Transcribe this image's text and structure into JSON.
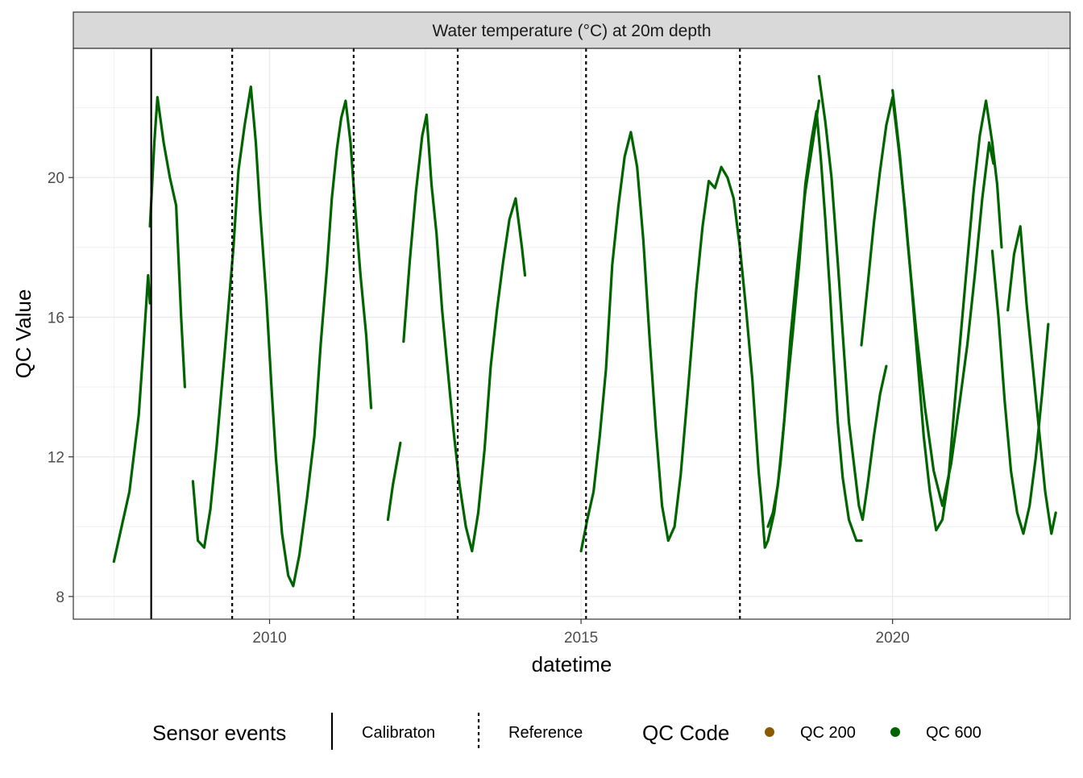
{
  "chart_data": {
    "type": "line",
    "panel_title": "Water temperature (°C) at 20m depth",
    "xlabel": "datetime",
    "ylabel": "QC Value",
    "x_ticks": [
      2010,
      2015,
      2020
    ],
    "y_ticks": [
      8,
      12,
      16,
      20
    ],
    "xlim": [
      2006.85,
      2022.85
    ],
    "ylim": [
      7.35,
      23.7
    ],
    "grid": true,
    "series": [
      {
        "name": "QC 600",
        "color": "#006400",
        "segments": [
          [
            [
              2007.5,
              9.0
            ],
            [
              2007.6,
              9.8
            ],
            [
              2007.75,
              11.0
            ],
            [
              2007.9,
              13.2
            ],
            [
              2007.97,
              15.0
            ],
            [
              2008.05,
              17.2
            ],
            [
              2008.08,
              16.4
            ]
          ],
          [
            [
              2008.08,
              18.6
            ],
            [
              2008.15,
              21.0
            ],
            [
              2008.2,
              22.3
            ],
            [
              2008.3,
              21.0
            ],
            [
              2008.4,
              20.0
            ],
            [
              2008.5,
              19.2
            ],
            [
              2008.58,
              16.0
            ],
            [
              2008.64,
              14.0
            ]
          ],
          [
            [
              2008.77,
              11.3
            ],
            [
              2008.85,
              9.6
            ],
            [
              2008.95,
              9.4
            ],
            [
              2009.05,
              10.5
            ],
            [
              2009.15,
              12.3
            ],
            [
              2009.28,
              15.0
            ],
            [
              2009.42,
              18.0
            ],
            [
              2009.5,
              20.2
            ],
            [
              2009.6,
              21.5
            ],
            [
              2009.7,
              22.6
            ],
            [
              2009.78,
              21.0
            ],
            [
              2009.85,
              19.0
            ],
            [
              2009.95,
              16.5
            ],
            [
              2010.03,
              14.0
            ],
            [
              2010.1,
              12.0
            ],
            [
              2010.2,
              9.8
            ],
            [
              2010.3,
              8.6
            ],
            [
              2010.38,
              8.3
            ],
            [
              2010.48,
              9.2
            ],
            [
              2010.6,
              10.8
            ],
            [
              2010.72,
              12.6
            ],
            [
              2010.82,
              15.2
            ],
            [
              2010.92,
              17.4
            ],
            [
              2011.0,
              19.4
            ],
            [
              2011.08,
              20.8
            ],
            [
              2011.15,
              21.7
            ],
            [
              2011.22,
              22.2
            ],
            [
              2011.3,
              21.0
            ],
            [
              2011.38,
              19.0
            ],
            [
              2011.46,
              17.2
            ],
            [
              2011.55,
              15.5
            ],
            [
              2011.63,
              13.4
            ]
          ],
          [
            [
              2011.9,
              10.2
            ],
            [
              2011.98,
              11.2
            ],
            [
              2012.1,
              12.4
            ]
          ],
          [
            [
              2012.15,
              15.3
            ],
            [
              2012.25,
              17.6
            ],
            [
              2012.35,
              19.6
            ],
            [
              2012.45,
              21.2
            ],
            [
              2012.52,
              21.8
            ],
            [
              2012.6,
              19.8
            ],
            [
              2012.68,
              18.4
            ],
            [
              2012.77,
              16.2
            ],
            [
              2012.86,
              14.5
            ],
            [
              2012.95,
              12.8
            ],
            [
              2013.05,
              11.2
            ],
            [
              2013.15,
              10.0
            ],
            [
              2013.25,
              9.3
            ],
            [
              2013.35,
              10.4
            ],
            [
              2013.45,
              12.2
            ],
            [
              2013.55,
              14.6
            ],
            [
              2013.65,
              16.2
            ],
            [
              2013.75,
              17.6
            ],
            [
              2013.85,
              18.8
            ],
            [
              2013.95,
              19.4
            ],
            [
              2014.05,
              18.0
            ],
            [
              2014.1,
              17.2
            ]
          ],
          [
            [
              2015.0,
              9.3
            ],
            [
              2015.1,
              10.2
            ],
            [
              2015.2,
              11.0
            ],
            [
              2015.3,
              12.6
            ],
            [
              2015.4,
              14.5
            ],
            [
              2015.5,
              17.5
            ],
            [
              2015.6,
              19.2
            ],
            [
              2015.7,
              20.6
            ],
            [
              2015.8,
              21.3
            ],
            [
              2015.9,
              20.3
            ],
            [
              2016.0,
              18.2
            ],
            [
              2016.1,
              15.4
            ],
            [
              2016.2,
              12.8
            ],
            [
              2016.3,
              10.6
            ],
            [
              2016.4,
              9.6
            ],
            [
              2016.5,
              10.0
            ],
            [
              2016.6,
              11.5
            ],
            [
              2016.72,
              14.0
            ],
            [
              2016.85,
              16.8
            ],
            [
              2016.95,
              18.6
            ],
            [
              2017.05,
              19.9
            ],
            [
              2017.15,
              19.7
            ],
            [
              2017.25,
              20.3
            ],
            [
              2017.35,
              20.0
            ],
            [
              2017.45,
              19.4
            ],
            [
              2017.55,
              18.0
            ],
            [
              2017.65,
              16.2
            ],
            [
              2017.75,
              14.2
            ],
            [
              2017.85,
              11.6
            ],
            [
              2017.9,
              10.6
            ],
            [
              2017.95,
              9.4
            ],
            [
              2018.0,
              9.6
            ],
            [
              2018.1,
              10.4
            ],
            [
              2018.2,
              11.8
            ],
            [
              2018.3,
              13.8
            ],
            [
              2018.4,
              15.6
            ],
            [
              2018.5,
              17.5
            ],
            [
              2018.6,
              19.8
            ],
            [
              2018.7,
              21.1
            ],
            [
              2018.78,
              21.9
            ],
            [
              2018.85,
              20.5
            ],
            [
              2018.92,
              18.8
            ],
            [
              2019.0,
              16.6
            ],
            [
              2019.05,
              15.0
            ],
            [
              2019.12,
              13.0
            ],
            [
              2019.2,
              11.4
            ],
            [
              2019.3,
              10.2
            ],
            [
              2019.42,
              9.6
            ],
            [
              2019.5,
              9.6
            ]
          ],
          [
            [
              2019.5,
              15.2
            ],
            [
              2019.6,
              16.9
            ],
            [
              2019.7,
              18.7
            ],
            [
              2019.8,
              20.2
            ],
            [
              2019.9,
              21.5
            ],
            [
              2020.0,
              22.3
            ],
            [
              2020.1,
              20.8
            ],
            [
              2020.2,
              19.1
            ],
            [
              2020.3,
              17.0
            ],
            [
              2020.4,
              14.8
            ],
            [
              2020.5,
              12.6
            ],
            [
              2020.6,
              11.0
            ],
            [
              2020.7,
              9.9
            ],
            [
              2020.8,
              10.2
            ],
            [
              2020.9,
              11.4
            ],
            [
              2021.0,
              13.6
            ],
            [
              2021.1,
              15.6
            ],
            [
              2021.2,
              17.6
            ],
            [
              2021.3,
              19.6
            ],
            [
              2021.4,
              21.2
            ],
            [
              2021.5,
              22.2
            ],
            [
              2021.6,
              21.0
            ],
            [
              2021.68,
              19.8
            ],
            [
              2021.75,
              18.0
            ]
          ],
          [
            [
              2021.85,
              16.2
            ],
            [
              2021.95,
              17.8
            ],
            [
              2022.05,
              18.6
            ],
            [
              2022.15,
              16.4
            ],
            [
              2022.25,
              14.6
            ],
            [
              2022.35,
              12.8
            ],
            [
              2022.45,
              11.0
            ],
            [
              2022.55,
              9.8
            ],
            [
              2022.62,
              10.4
            ]
          ],
          [
            [
              2018.0,
              10.0
            ],
            [
              2018.08,
              10.4
            ],
            [
              2018.16,
              11.2
            ],
            [
              2018.26,
              13.0
            ],
            [
              2018.36,
              15.4
            ],
            [
              2018.48,
              17.6
            ],
            [
              2018.6,
              19.6
            ],
            [
              2018.72,
              21.0
            ],
            [
              2018.82,
              22.2
            ]
          ],
          [
            [
              2018.82,
              22.9
            ],
            [
              2018.92,
              21.6
            ],
            [
              2019.02,
              20.0
            ],
            [
              2019.12,
              17.6
            ],
            [
              2019.22,
              15.0
            ],
            [
              2019.3,
              13.0
            ],
            [
              2019.38,
              11.8
            ],
            [
              2019.46,
              10.6
            ],
            [
              2019.52,
              10.2
            ],
            [
              2019.6,
              11.2
            ],
            [
              2019.7,
              12.6
            ],
            [
              2019.8,
              13.8
            ],
            [
              2019.9,
              14.6
            ]
          ],
          [
            [
              2020.0,
              22.5
            ],
            [
              2020.12,
              20.6
            ],
            [
              2020.25,
              18.0
            ],
            [
              2020.38,
              15.6
            ],
            [
              2020.52,
              13.4
            ],
            [
              2020.66,
              11.6
            ],
            [
              2020.8,
              10.6
            ],
            [
              2020.94,
              11.8
            ],
            [
              2021.08,
              13.6
            ],
            [
              2021.2,
              15.2
            ],
            [
              2021.32,
              17.2
            ],
            [
              2021.44,
              19.4
            ],
            [
              2021.55,
              21.0
            ],
            [
              2021.62,
              20.4
            ]
          ],
          [
            [
              2021.6,
              17.9
            ],
            [
              2021.7,
              16.0
            ],
            [
              2021.8,
              13.6
            ],
            [
              2021.9,
              11.6
            ],
            [
              2022.0,
              10.4
            ],
            [
              2022.1,
              9.8
            ],
            [
              2022.2,
              10.6
            ],
            [
              2022.3,
              12.0
            ],
            [
              2022.4,
              13.8
            ],
            [
              2022.5,
              15.8
            ]
          ]
        ]
      },
      {
        "name": "QC 200",
        "color": "#8B5A00",
        "segments": []
      }
    ],
    "sensor_events": [
      {
        "type": "Calibraton",
        "x": 2008.1,
        "style": "solid"
      },
      {
        "type": "Reference",
        "x": 2009.4,
        "style": "dotted"
      },
      {
        "type": "Reference",
        "x": 2011.35,
        "style": "dotted"
      },
      {
        "type": "Reference",
        "x": 2013.02,
        "style": "dotted"
      },
      {
        "type": "Reference",
        "x": 2015.08,
        "style": "dotted"
      },
      {
        "type": "Reference",
        "x": 2017.55,
        "style": "dotted"
      }
    ],
    "legend": {
      "placement": "bottom",
      "events_title": "Sensor events",
      "events_items": [
        "Calibraton",
        "Reference"
      ],
      "qc_title": "QC Code",
      "qc_items": [
        {
          "label": "QC 200",
          "color": "#8B5A00"
        },
        {
          "label": "QC 600",
          "color": "#006400"
        }
      ]
    }
  }
}
